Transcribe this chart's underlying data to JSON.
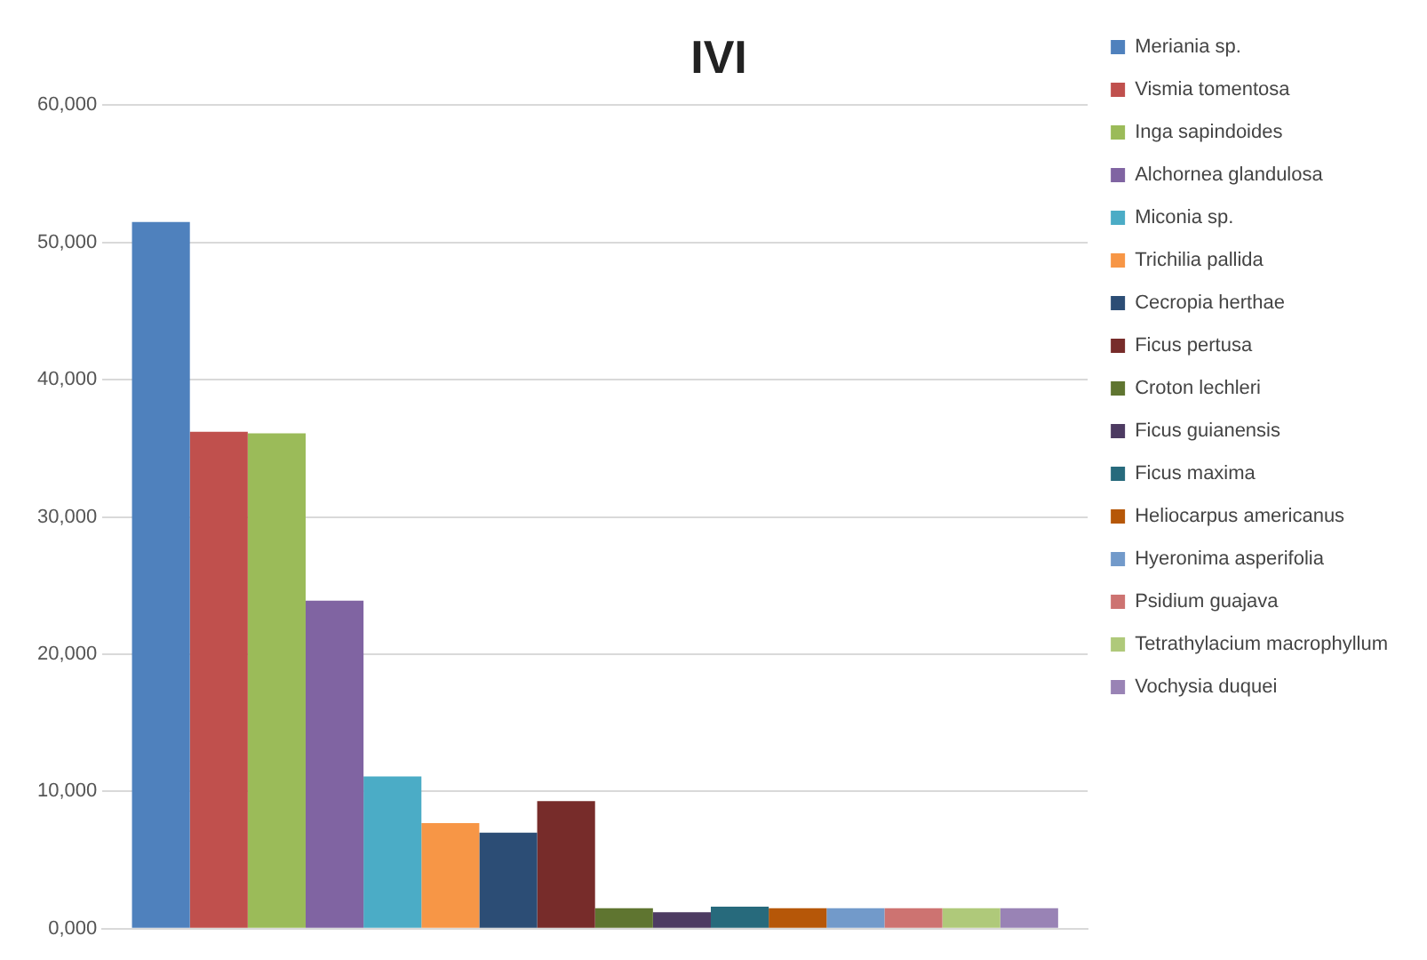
{
  "chart_data": {
    "type": "bar",
    "title": "IVI",
    "categories": [
      null
    ],
    "series": [
      {
        "name": "Meriania sp.",
        "color": "#4f81bd",
        "values": [
          51500
        ]
      },
      {
        "name": "Vismia tomentosa",
        "color": "#c0504d",
        "values": [
          36200
        ]
      },
      {
        "name": "Inga sapindoides",
        "color": "#9bbb59",
        "values": [
          36100
        ]
      },
      {
        "name": "Alchornea glandulosa",
        "color": "#8064a2",
        "values": [
          23900
        ]
      },
      {
        "name": "Miconia sp.",
        "color": "#4bacc6",
        "values": [
          11100
        ]
      },
      {
        "name": "Trichilia pallida",
        "color": "#f79646",
        "values": [
          7700
        ]
      },
      {
        "name": "Cecropia herthae",
        "color": "#2c4d75",
        "values": [
          7000
        ]
      },
      {
        "name": "Ficus pertusa",
        "color": "#772c2a",
        "values": [
          9300
        ]
      },
      {
        "name": "Croton lechleri",
        "color": "#5f7530",
        "values": [
          1500
        ]
      },
      {
        "name": "Ficus guianensis",
        "color": "#4d3b62",
        "values": [
          1200
        ]
      },
      {
        "name": "Ficus maxima",
        "color": "#276a7c",
        "values": [
          1600
        ]
      },
      {
        "name": "Heliocarpus americanus",
        "color": "#b65708",
        "values": [
          1500
        ]
      },
      {
        "name": "Hyeronima asperifolia",
        "color": "#729aca",
        "values": [
          1500
        ]
      },
      {
        "name": "Psidium guajava",
        "color": "#cd7371",
        "values": [
          1500
        ]
      },
      {
        "name": "Tetrathylacium macrophyllum",
        "color": "#afc97a",
        "values": [
          1500
        ]
      },
      {
        "name": "Vochysia duquei",
        "color": "#9983b5",
        "values": [
          1500
        ]
      }
    ],
    "ylim": [
      0,
      60000
    ],
    "yticks": [
      {
        "value": 0,
        "label": "0,000"
      },
      {
        "value": 10000,
        "label": "10,000"
      },
      {
        "value": 20000,
        "label": "20,000"
      },
      {
        "value": 30000,
        "label": "30,000"
      },
      {
        "value": 40000,
        "label": "40,000"
      },
      {
        "value": 50000,
        "label": "50,000"
      },
      {
        "value": 60000,
        "label": "60,000"
      }
    ],
    "grid": "y",
    "legend": "right"
  }
}
